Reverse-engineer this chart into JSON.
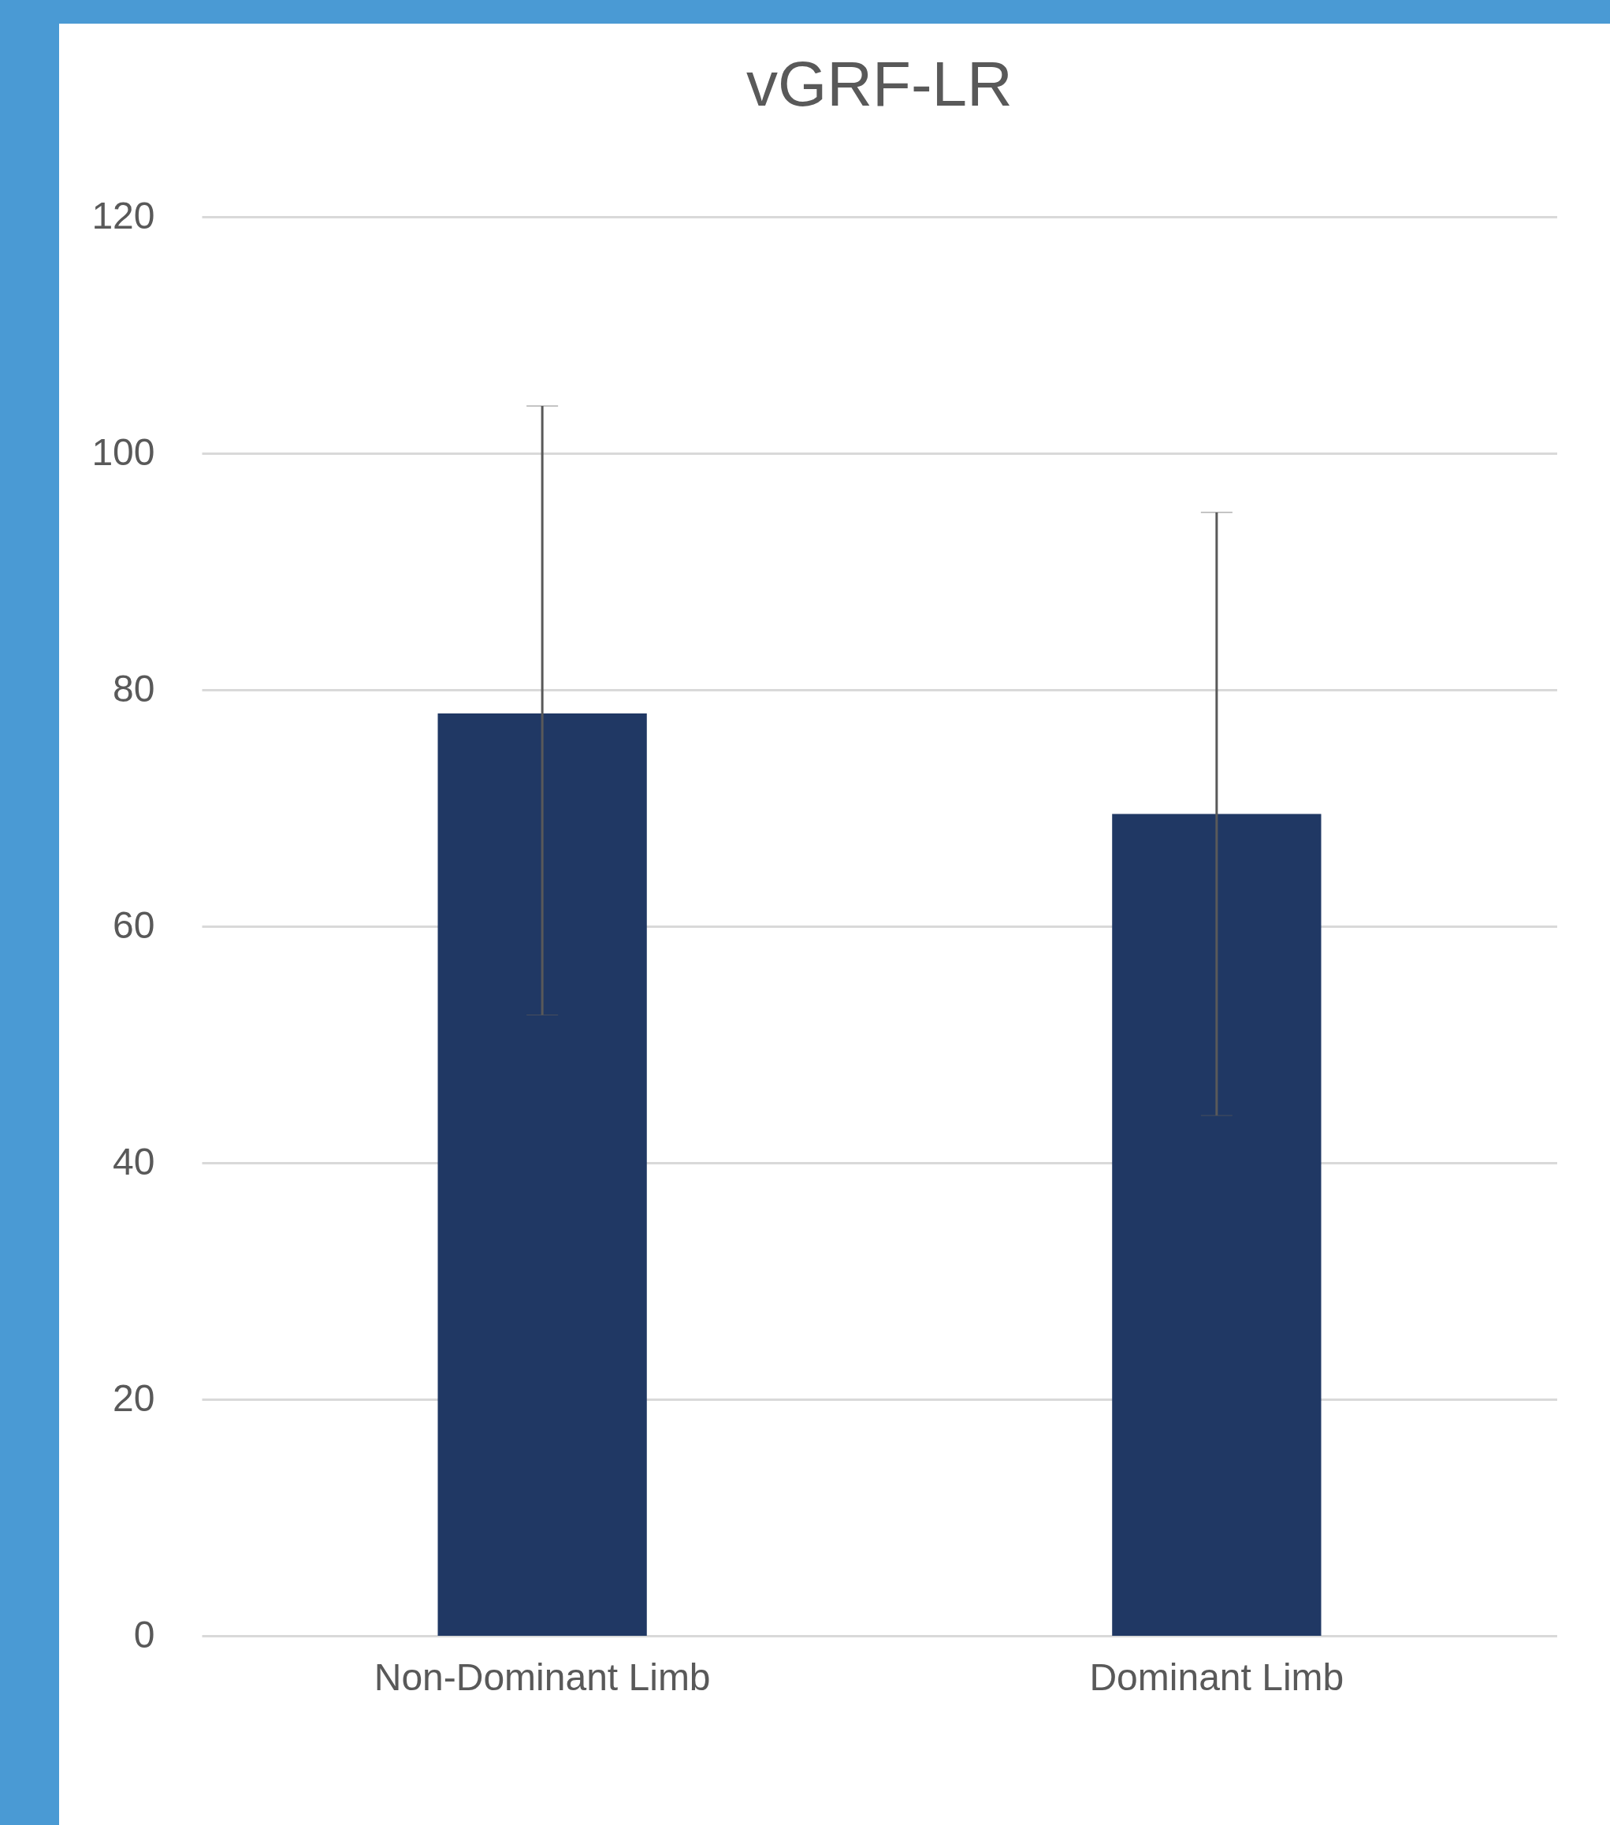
{
  "chart_data": {
    "type": "bar",
    "title": "vGRF-LR",
    "categories": [
      "Non-Dominant Limb",
      "Dominant Limb"
    ],
    "values": [
      78,
      69.5
    ],
    "errors": [
      [
        52.5,
        104
      ],
      [
        44,
        95
      ]
    ],
    "color": "#203864",
    "ylim": [
      0,
      120
    ],
    "yticks": [
      0,
      20,
      40,
      60,
      80,
      100,
      120
    ],
    "grid": "y"
  }
}
